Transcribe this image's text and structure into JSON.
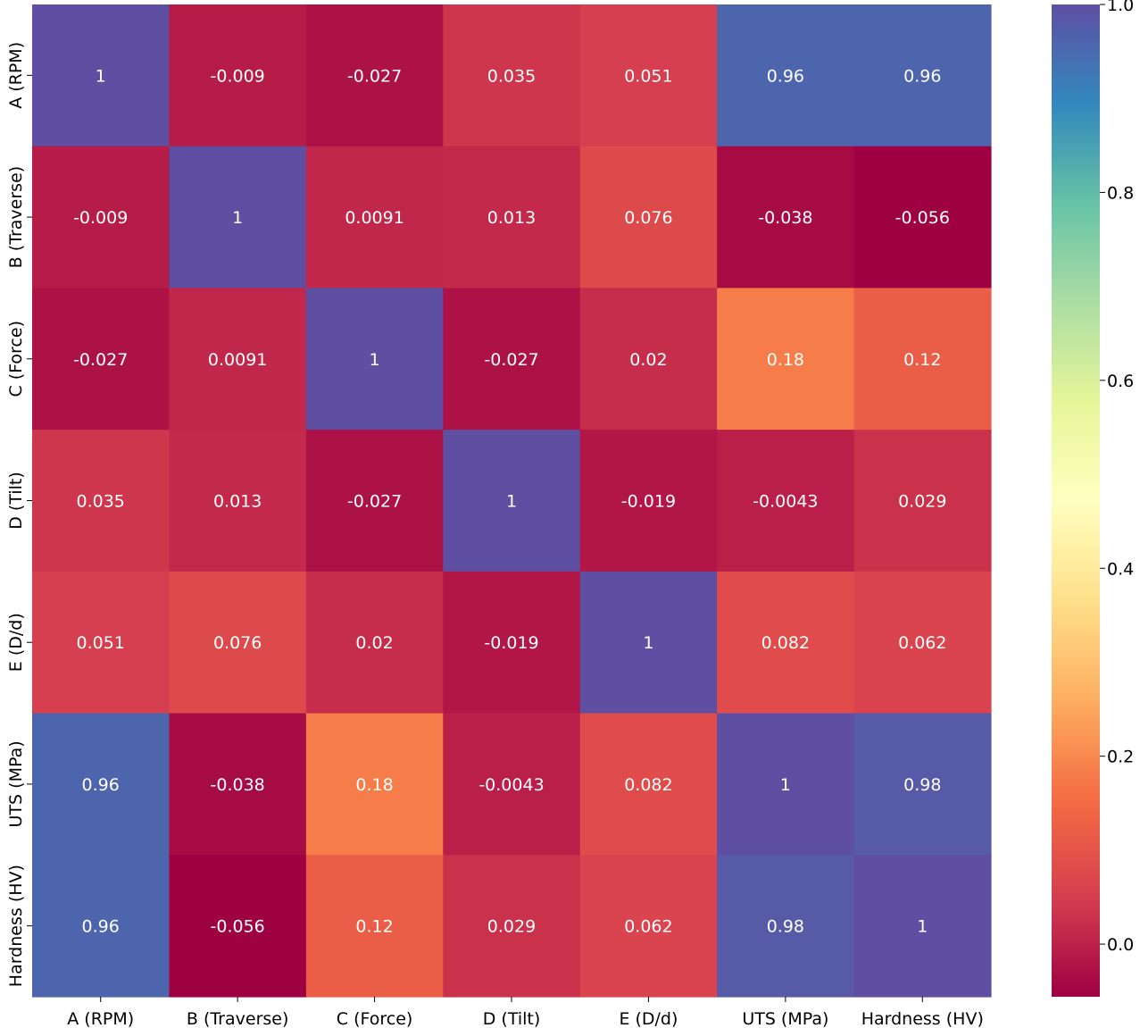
{
  "chart_data": {
    "type": "heatmap",
    "title": "",
    "xlabel": "",
    "ylabel": "",
    "labels": [
      "A (RPM)",
      "B (Traverse)",
      "C (Force)",
      "D (Tilt)",
      "E (D/d)",
      "UTS (MPa)",
      "Hardness (HV)"
    ],
    "matrix": [
      [
        1,
        -0.009,
        -0.027,
        0.035,
        0.051,
        0.96,
        0.96
      ],
      [
        -0.009,
        1,
        0.0091,
        0.013,
        0.076,
        -0.038,
        -0.056
      ],
      [
        -0.027,
        0.0091,
        1,
        -0.027,
        0.02,
        0.18,
        0.12
      ],
      [
        0.035,
        0.013,
        -0.027,
        1,
        -0.019,
        -0.0043,
        0.029
      ],
      [
        0.051,
        0.076,
        0.02,
        -0.019,
        1,
        0.082,
        0.062
      ],
      [
        0.96,
        -0.038,
        0.18,
        -0.0043,
        0.082,
        1,
        0.98
      ],
      [
        0.96,
        -0.056,
        0.12,
        0.029,
        0.062,
        0.98,
        1
      ]
    ],
    "annotations": [
      [
        "1",
        "-0.009",
        "-0.027",
        "0.035",
        "0.051",
        "0.96",
        "0.96"
      ],
      [
        "-0.009",
        "1",
        "0.0091",
        "0.013",
        "0.076",
        "-0.038",
        "-0.056"
      ],
      [
        "-0.027",
        "0.0091",
        "1",
        "-0.027",
        "0.02",
        "0.18",
        "0.12"
      ],
      [
        "0.035",
        "0.013",
        "-0.027",
        "1",
        "-0.019",
        "-0.0043",
        "0.029"
      ],
      [
        "0.051",
        "0.076",
        "0.02",
        "-0.019",
        "1",
        "0.082",
        "0.062"
      ],
      [
        "0.96",
        "-0.038",
        "0.18",
        "-0.0043",
        "0.082",
        "1",
        "0.98"
      ],
      [
        "0.96",
        "-0.056",
        "0.12",
        "0.029",
        "0.062",
        "0.98",
        "1"
      ]
    ],
    "colorscale": "Spectral",
    "colorbar": {
      "vmin": -0.056,
      "vmax": 1.0,
      "ticks": [
        0.0,
        0.2,
        0.4,
        0.6,
        0.8,
        1.0
      ],
      "tick_labels": [
        "0.0",
        "0.2",
        "0.4",
        "0.6",
        "0.8",
        "1.0"
      ]
    }
  }
}
